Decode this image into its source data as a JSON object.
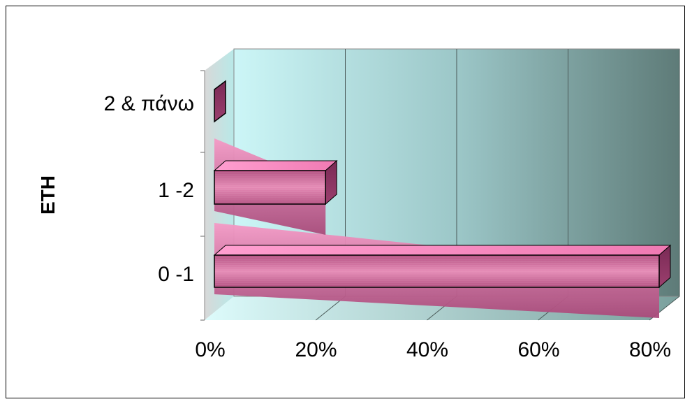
{
  "chart_data": {
    "type": "bar",
    "orientation": "horizontal",
    "style": "3d",
    "title": "",
    "ylabel": "ΕΤΗ",
    "xlabel": "",
    "categories": [
      "0 -1",
      "1 -2",
      "2 & πάνω"
    ],
    "values": [
      80,
      20,
      0.5
    ],
    "xlim": [
      0,
      80
    ],
    "x_ticks": [
      "0%",
      "20%",
      "40%",
      "60%",
      "80%"
    ],
    "grid": true,
    "legend": "none",
    "colors": {
      "bar": "#c0608f",
      "bar_light": "#f28cc0",
      "wall_start": "#ccf6f7",
      "wall_end": "#5e7b78"
    }
  }
}
